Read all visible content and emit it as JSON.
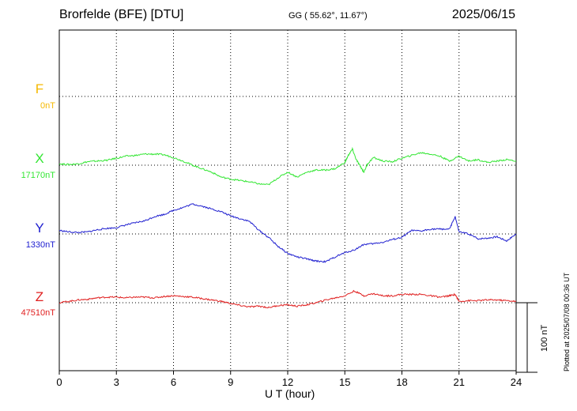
{
  "header": {
    "station": "Brorfelde (BFE)  [DTU]",
    "coords": "GG ( 55.62°,  11.67°)",
    "date": "2025/06/15"
  },
  "plotted_note": "Plotted at 2025/07/08 00:36 UT",
  "chart_data": {
    "type": "line",
    "title": "Brorfelde (BFE)  [DTU]",
    "xlabel": "U T (hour)",
    "xlim": [
      0,
      24
    ],
    "xticks": [
      0,
      3,
      6,
      9,
      12,
      15,
      18,
      21,
      24
    ],
    "xtick_labels": [
      "0",
      "3",
      "6",
      "9",
      "12",
      "15",
      "18",
      "21",
      "24"
    ],
    "scale_bar": {
      "label": "100 nT",
      "nT": 100
    },
    "grid": true,
    "series": [
      {
        "name": "F",
        "baseline_label": "0nT",
        "color": "#f5b800",
        "baseline_nT": 0,
        "values": []
      },
      {
        "name": "X",
        "baseline_label": "17170nT",
        "color": "#33e633",
        "baseline_nT": 17170,
        "x": [
          0,
          0.5,
          1,
          1.5,
          2,
          2.5,
          3,
          3.5,
          4,
          4.5,
          5,
          5.5,
          6,
          6.5,
          7,
          7.5,
          8,
          8.5,
          9,
          9.5,
          10,
          10.5,
          11,
          11.5,
          12,
          12.5,
          13,
          13.5,
          14,
          14.5,
          15,
          15.2,
          15.4,
          15.6,
          15.8,
          16,
          16.2,
          16.5,
          17,
          17.5,
          18,
          18.5,
          19,
          19.5,
          20,
          20.5,
          21,
          21.5,
          22,
          22.5,
          23,
          23.5,
          24
        ],
        "values": [
          17172,
          17171,
          17172,
          17175,
          17176,
          17177,
          17180,
          17183,
          17184,
          17186,
          17186,
          17185,
          17181,
          17176,
          17170,
          17165,
          17160,
          17153,
          17150,
          17148,
          17146,
          17143,
          17142,
          17152,
          17160,
          17153,
          17160,
          17163,
          17163,
          17165,
          17174,
          17185,
          17193,
          17178,
          17169,
          17160,
          17172,
          17181,
          17176,
          17175,
          17180,
          17184,
          17188,
          17186,
          17183,
          17176,
          17183,
          17176,
          17178,
          17174,
          17176,
          17178,
          17176
        ]
      },
      {
        "name": "Y",
        "baseline_label": "1330nT",
        "color": "#2020d0",
        "baseline_nT": 1330,
        "x": [
          0,
          0.5,
          1,
          1.5,
          2,
          2.5,
          3,
          3.5,
          4,
          4.5,
          5,
          5.5,
          6,
          6.5,
          7,
          7.5,
          8,
          8.5,
          9,
          9.5,
          10,
          10.5,
          11,
          11.5,
          12,
          12.5,
          13,
          13.5,
          14,
          14.5,
          15,
          15.5,
          16,
          16.5,
          17,
          17.5,
          18,
          18.5,
          19,
          19.5,
          20,
          20.5,
          20.8,
          21,
          21.5,
          22,
          22.5,
          23,
          23.5,
          24
        ],
        "values": [
          1335,
          1333,
          1332,
          1333,
          1336,
          1338,
          1339,
          1343,
          1346,
          1349,
          1355,
          1358,
          1364,
          1368,
          1373,
          1370,
          1366,
          1362,
          1356,
          1352,
          1348,
          1335,
          1325,
          1312,
          1302,
          1297,
          1294,
          1291,
          1290,
          1297,
          1303,
          1307,
          1315,
          1316,
          1318,
          1322,
          1325,
          1335,
          1334,
          1337,
          1337,
          1337,
          1355,
          1333,
          1330,
          1323,
          1324,
          1326,
          1320,
          1330
        ]
      },
      {
        "name": "Z",
        "baseline_label": "47510nT",
        "color": "#e02020",
        "baseline_nT": 47510,
        "x": [
          0,
          0.5,
          1,
          1.5,
          2,
          2.5,
          3,
          3.5,
          4,
          4.5,
          5,
          5.5,
          6,
          6.5,
          7,
          7.5,
          8,
          8.5,
          9,
          9.5,
          10,
          10.5,
          11,
          11.5,
          12,
          12.5,
          13,
          13.5,
          14,
          14.5,
          15,
          15.5,
          16,
          16.5,
          17,
          17.5,
          18,
          18.5,
          19,
          19.5,
          20,
          20.5,
          20.8,
          21,
          21.5,
          22,
          22.5,
          23,
          23.5,
          24
        ],
        "values": [
          47510,
          47512,
          47514,
          47515,
          47517,
          47518,
          47518,
          47517,
          47518,
          47518,
          47517,
          47519,
          47520,
          47519,
          47518,
          47516,
          47514,
          47512,
          47509,
          47506,
          47504,
          47505,
          47503,
          47506,
          47507,
          47505,
          47507,
          47510,
          47514,
          47517,
          47520,
          47527,
          47520,
          47523,
          47520,
          47520,
          47522,
          47522,
          47522,
          47520,
          47518,
          47520,
          47522,
          47512,
          47513,
          47513,
          47514,
          47514,
          47513,
          47512
        ]
      }
    ]
  }
}
